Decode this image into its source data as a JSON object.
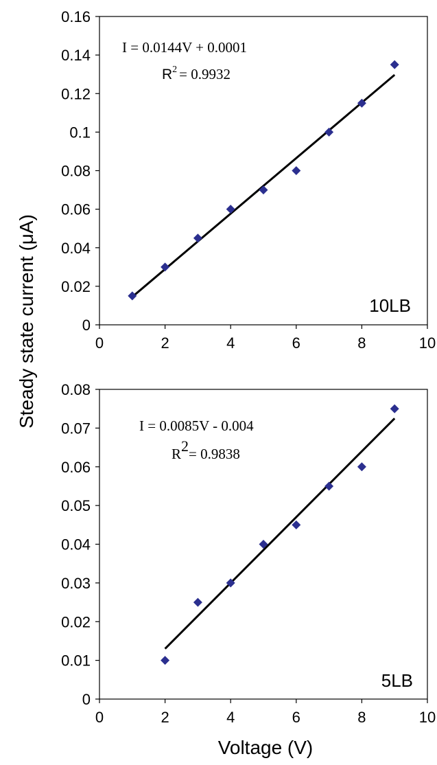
{
  "figure": {
    "ylabel": "Steady state current (μA)",
    "xlabel": "Voltage (V)"
  },
  "chart_data": [
    {
      "type": "scatter",
      "panel_label": "10LB",
      "x": [
        1,
        2,
        3,
        4,
        5,
        6,
        7,
        8,
        9
      ],
      "y": [
        0.015,
        0.03,
        0.045,
        0.06,
        0.07,
        0.08,
        0.1,
        0.115,
        0.135
      ],
      "xlim": [
        0,
        10
      ],
      "ylim": [
        0,
        0.16
      ],
      "xticks": [
        "0",
        "2",
        "4",
        "6",
        "8",
        "10"
      ],
      "yticks": [
        "0",
        "0.02",
        "0.04",
        "0.06",
        "0.08",
        "0.1",
        "0.12",
        "0.14",
        "0.16"
      ],
      "fit": {
        "equation": "I = 0.0144V + 0.0001",
        "r2_label": "R",
        "r2_sup": "2",
        "r2_value": "= 0.9932",
        "slope": 0.0144,
        "intercept": 0.0001,
        "x_range": [
          1,
          9
        ]
      },
      "marker_color": "#2b2f8f",
      "line_color": "#000000"
    },
    {
      "type": "scatter",
      "panel_label": "5LB",
      "x": [
        2,
        3,
        4,
        5,
        6,
        7,
        8,
        9
      ],
      "y": [
        0.01,
        0.025,
        0.03,
        0.04,
        0.045,
        0.055,
        0.06,
        0.075
      ],
      "xlim": [
        0,
        10
      ],
      "ylim": [
        0,
        0.08
      ],
      "xticks": [
        "0",
        "2",
        "4",
        "6",
        "8",
        "10"
      ],
      "yticks": [
        "0",
        "0.01",
        "0.02",
        "0.03",
        "0.04",
        "0.05",
        "0.06",
        "0.07",
        "0.08"
      ],
      "fit": {
        "equation": "I = 0.0085V - 0.004",
        "r2_label": "R",
        "r2_sup": "2",
        "r2_value": "= 0.9838",
        "slope": 0.0085,
        "intercept": -0.004,
        "x_range": [
          2,
          9
        ]
      },
      "marker_color": "#2b2f8f",
      "line_color": "#000000"
    }
  ]
}
